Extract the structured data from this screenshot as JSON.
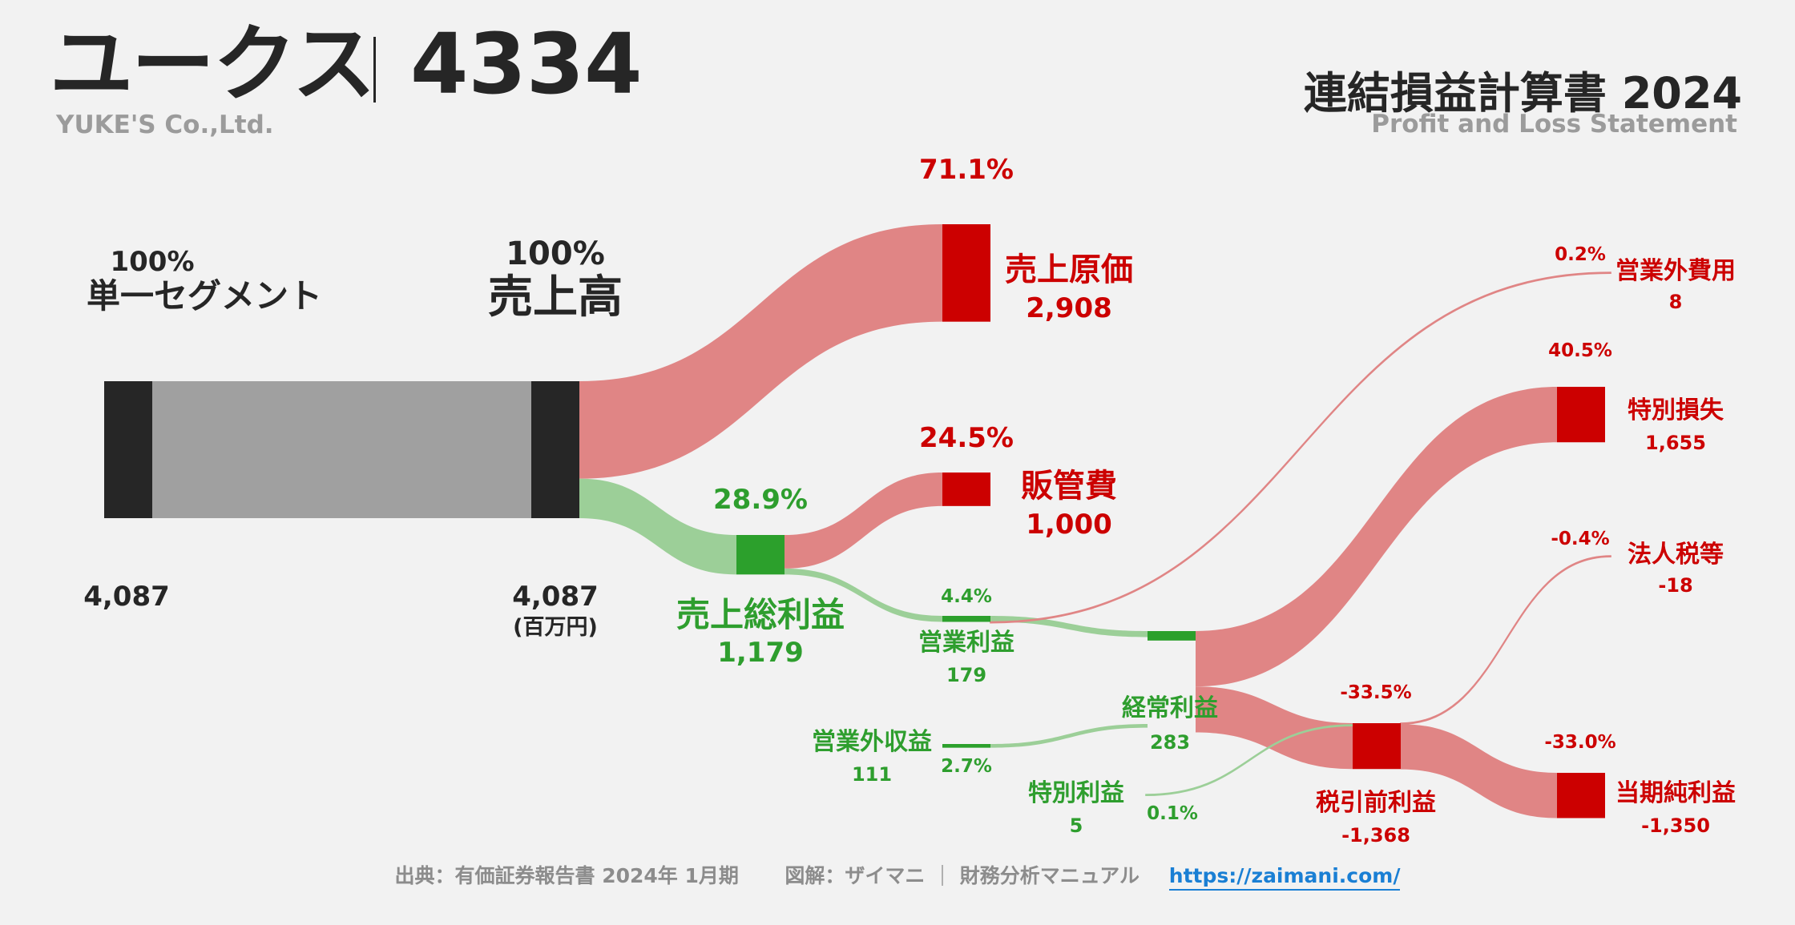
{
  "header": {
    "company": "ユークス",
    "code": "4334",
    "company_en": "YUKE'S Co.,Ltd.",
    "title": "連結損益計算書 2024",
    "title_en": "Profit and Loss Statement"
  },
  "chart_data": {
    "type": "sankey",
    "unit": "(百万円)",
    "nodes": [
      {
        "id": "segment",
        "name": "単一セグメント",
        "value": 4087,
        "value_label": "4,087",
        "percent": "100%"
      },
      {
        "id": "revenue",
        "name": "売上高",
        "value": 4087,
        "value_label": "4,087",
        "percent": "100%"
      },
      {
        "id": "cogs",
        "name": "売上原価",
        "value": 2908,
        "value_label": "2,908",
        "percent": "71.1%"
      },
      {
        "id": "gross",
        "name": "売上総利益",
        "value": 1179,
        "value_label": "1,179",
        "percent": "28.9%"
      },
      {
        "id": "sga",
        "name": "販管費",
        "value": 1000,
        "value_label": "1,000",
        "percent": "24.5%"
      },
      {
        "id": "op",
        "name": "営業利益",
        "value": 179,
        "value_label": "179",
        "percent": "4.4%"
      },
      {
        "id": "nonop_inc",
        "name": "営業外収益",
        "value": 111,
        "value_label": "111",
        "percent": "2.7%"
      },
      {
        "id": "nonop_exp",
        "name": "営業外費用",
        "value": 8,
        "value_label": "8",
        "percent": "0.2%"
      },
      {
        "id": "ordinary",
        "name": "経常利益",
        "value": 283,
        "value_label": "283",
        "percent": ""
      },
      {
        "id": "special_inc",
        "name": "特別利益",
        "value": 5,
        "value_label": "5",
        "percent": "0.1%"
      },
      {
        "id": "special_loss",
        "name": "特別損失",
        "value": 1655,
        "value_label": "1,655",
        "percent": "40.5%"
      },
      {
        "id": "pretax",
        "name": "税引前利益",
        "value": -1368,
        "value_label": "-1,368",
        "percent": "-33.5%"
      },
      {
        "id": "tax",
        "name": "法人税等",
        "value": -18,
        "value_label": "-18",
        "percent": "-0.4%"
      },
      {
        "id": "net",
        "name": "当期純利益",
        "value": -1350,
        "value_label": "-1,350",
        "percent": "-33.0%"
      }
    ],
    "links": [
      {
        "from": "segment",
        "to": "revenue",
        "value": 4087,
        "kind": "neutral"
      },
      {
        "from": "revenue",
        "to": "cogs",
        "value": 2908,
        "kind": "cost"
      },
      {
        "from": "revenue",
        "to": "gross",
        "value": 1179,
        "kind": "profit"
      },
      {
        "from": "gross",
        "to": "sga",
        "value": 1000,
        "kind": "cost"
      },
      {
        "from": "gross",
        "to": "op",
        "value": 179,
        "kind": "profit"
      },
      {
        "from": "op",
        "to": "ordinary",
        "value": 179,
        "kind": "profit"
      },
      {
        "from": "op",
        "to": "nonop_exp",
        "value": 8,
        "kind": "cost"
      },
      {
        "from": "nonop_inc",
        "to": "ordinary",
        "value": 111,
        "kind": "profit"
      },
      {
        "from": "ordinary",
        "to": "special_loss",
        "value": 1655,
        "kind": "cost"
      },
      {
        "from": "ordinary",
        "to": "pretax",
        "value": 1368,
        "kind": "cost"
      },
      {
        "from": "special_inc",
        "to": "pretax",
        "value": 5,
        "kind": "profit"
      },
      {
        "from": "pretax",
        "to": "tax",
        "value": 18,
        "kind": "cost"
      },
      {
        "from": "pretax",
        "to": "net",
        "value": 1350,
        "kind": "cost"
      }
    ],
    "colors": {
      "neutral_bar": "#262626",
      "neutral_flow": "#a0a0a0",
      "cost_bar": "#cc0000",
      "cost_flow": "#e08585",
      "profit_bar": "#2ca02c",
      "profit_flow": "#9ccf98"
    }
  },
  "footer": {
    "source": "出典：有価証券報告書 2024年 1月期",
    "credit": "図解：ザイマニ",
    "site_name": "財務分析マニュアル",
    "url": "https://zaimani.com/"
  }
}
